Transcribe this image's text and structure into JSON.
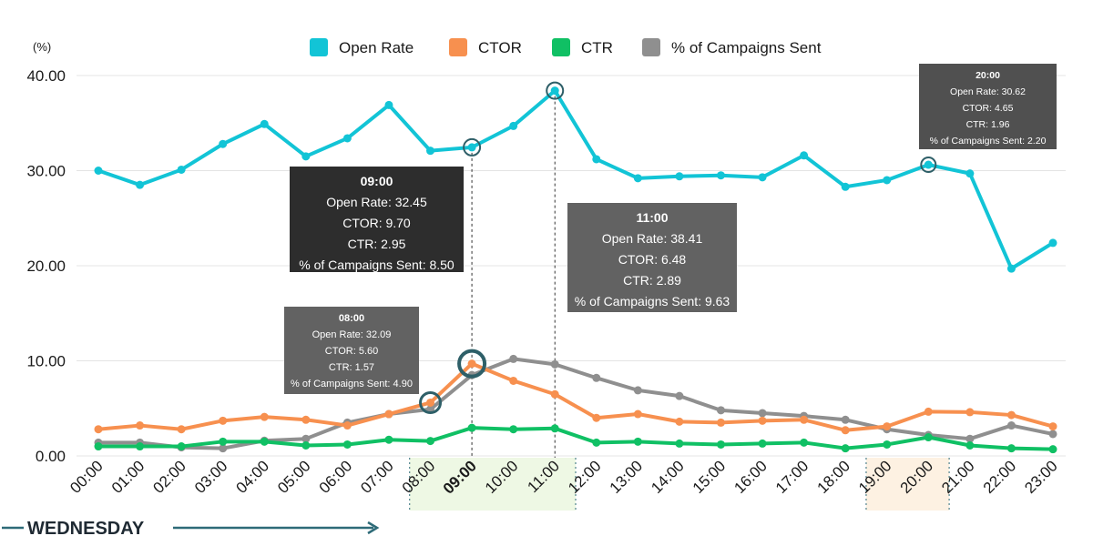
{
  "chart_data": {
    "type": "line",
    "y_unit": "(%)",
    "ylim": [
      0,
      40
    ],
    "y_ticks": [
      "0.00",
      "10.00",
      "20.00",
      "30.00",
      "40.00"
    ],
    "grid": true,
    "legend_position": "top-center",
    "categories": [
      "00:00",
      "01:00",
      "02:00",
      "03:00",
      "04:00",
      "05:00",
      "06:00",
      "07:00",
      "08:00",
      "09:00",
      "10:00",
      "11:00",
      "12:00",
      "13:00",
      "14:00",
      "15:00",
      "16:00",
      "17:00",
      "18:00",
      "19:00",
      "20:00",
      "21:00",
      "22:00",
      "23:00"
    ],
    "series": [
      {
        "name": "Open Rate",
        "color": "#12c4d6",
        "values": [
          30.0,
          28.5,
          30.1,
          32.8,
          34.9,
          31.5,
          33.4,
          36.9,
          32.09,
          32.45,
          34.7,
          38.41,
          31.2,
          29.2,
          29.4,
          29.5,
          29.3,
          31.6,
          28.3,
          29.0,
          30.62,
          29.7,
          19.7,
          22.4
        ]
      },
      {
        "name": "CTOR",
        "color": "#f7904f",
        "values": [
          2.8,
          3.2,
          2.8,
          3.7,
          4.1,
          3.8,
          3.2,
          4.4,
          5.6,
          9.7,
          7.9,
          6.48,
          4.0,
          4.4,
          3.6,
          3.5,
          3.7,
          3.8,
          2.7,
          3.1,
          4.65,
          4.6,
          4.3,
          3.1
        ]
      },
      {
        "name": "CTR",
        "color": "#10c064",
        "values": [
          1.0,
          1.0,
          1.0,
          1.5,
          1.5,
          1.1,
          1.2,
          1.7,
          1.57,
          2.95,
          2.8,
          2.89,
          1.4,
          1.5,
          1.3,
          1.2,
          1.3,
          1.4,
          0.8,
          1.2,
          1.96,
          1.1,
          0.8,
          0.7
        ]
      },
      {
        "name": "% of Campaigns Sent",
        "color": "#8f8f8f",
        "values": [
          1.4,
          1.4,
          0.9,
          0.8,
          1.6,
          1.8,
          3.5,
          4.4,
          4.9,
          8.5,
          10.2,
          9.63,
          8.2,
          6.9,
          6.3,
          4.8,
          4.5,
          4.2,
          3.8,
          2.8,
          2.2,
          1.8,
          3.2,
          2.3
        ]
      }
    ],
    "highlighted_ticks": [
      "08:00",
      "09:00",
      "10:00",
      "11:00",
      "19:00",
      "20:00"
    ],
    "bold_tick": "09:00",
    "tooltips": [
      {
        "time": "08:00",
        "lines": [
          "Open Rate: 32.09",
          "CTOR: 5.60",
          "CTR: 1.57",
          "% of Campaigns Sent: 4.90"
        ]
      },
      {
        "time": "09:00",
        "lines": [
          "Open Rate: 32.45",
          "CTOR: 9.70",
          "CTR: 2.95",
          "% of Campaigns Sent: 8.50"
        ]
      },
      {
        "time": "11:00",
        "lines": [
          "Open Rate: 38.41",
          "CTOR: 6.48",
          "CTR: 2.89",
          "% of Campaigns Sent: 9.63"
        ]
      },
      {
        "time": "20:00",
        "lines": [
          "Open Rate: 30.62",
          "CTOR: 4.65",
          "CTR: 1.96",
          "% of Campaigns Sent: 2.20"
        ]
      }
    ],
    "day_label": "WEDNESDAY",
    "band_colors": {
      "morning": "#eef8e4",
      "evening": "#fdf1e2"
    }
  }
}
